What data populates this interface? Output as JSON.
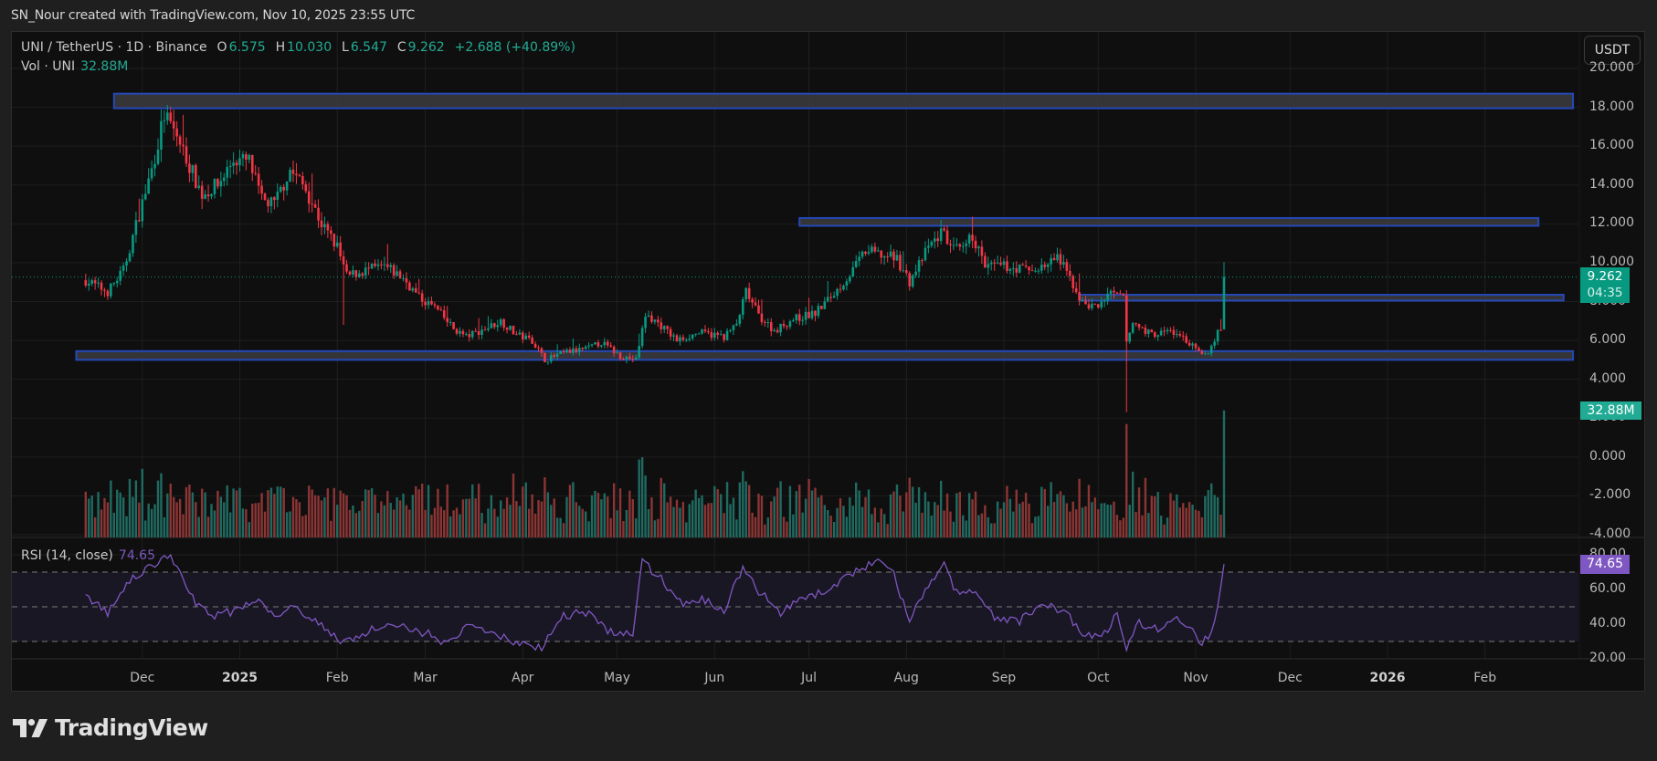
{
  "credit": "SN_Nour created with TradingView.com, Nov 10, 2025 23:55 UTC",
  "header": {
    "symbol": "UNI / TetherUS · 1D · Binance",
    "open_label": "O",
    "open": "6.575",
    "high_label": "H",
    "high": "10.030",
    "low_label": "L",
    "low": "6.547",
    "close_label": "C",
    "close": "9.262",
    "change": "+2.688 (+40.89%)",
    "vol_label": "Vol · UNI",
    "vol_value": "32.88M"
  },
  "currency_button": "USDT",
  "price_tag": {
    "price": "9.262",
    "countdown": "04:35"
  },
  "volume_tag": "32.88M",
  "rsi": {
    "label": "RSI (14, close)",
    "value": "74.65"
  },
  "logo_text": "TradingView",
  "colors": {
    "up": "#089981",
    "down": "#f23645",
    "vol_up": "#1f6b61",
    "vol_down": "#8c3535",
    "rsi": "#7e57c2",
    "zone_fill": "#3c3c3f",
    "zone_border": "#2448b8",
    "background": "#0f0f0f"
  },
  "chart_data": {
    "type": "candlestick",
    "title": "UNI / TetherUS · 1D · Binance",
    "xlabel": "",
    "ylabel": "USDT",
    "y_ticks": [
      "20.000",
      "18.000",
      "16.000",
      "14.000",
      "12.000",
      "10.000",
      "8.000",
      "6.000",
      "4.000",
      "2.000",
      "0.000",
      "-2.000",
      "-4.000"
    ],
    "rsi_ticks": [
      "80.00",
      "60.00",
      "40.00",
      "20.00"
    ],
    "x_ticks": [
      "Dec",
      "2025",
      "Feb",
      "Mar",
      "Apr",
      "May",
      "Jun",
      "Jul",
      "Aug",
      "Sep",
      "Oct",
      "Nov",
      "Dec",
      "2026",
      "Feb"
    ],
    "ylim": [
      -4,
      20
    ],
    "last": {
      "open": 6.575,
      "high": 10.03,
      "low": 6.547,
      "close": 9.262,
      "change": 2.688,
      "change_pct": 40.89,
      "volume": "32.88M",
      "rsi": 74.65
    },
    "zones": [
      {
        "from": 17.95,
        "to": 18.7,
        "start": "2024-11-22",
        "end": "2026-03-01"
      },
      {
        "from": 11.9,
        "to": 12.3,
        "start": "2025-06-28",
        "end": "2026-02-18"
      },
      {
        "from": 8.05,
        "to": 8.35,
        "start": "2025-09-25",
        "end": "2026-02-26"
      },
      {
        "from": 5.0,
        "to": 5.45,
        "start": "2024-11-10",
        "end": "2026-03-01"
      }
    ],
    "close_path": [
      [
        "2024-11-13",
        9.1
      ],
      [
        "2024-11-20",
        8.5
      ],
      [
        "2024-11-25",
        9.6
      ],
      [
        "2024-11-30",
        12.5
      ],
      [
        "2024-12-04",
        14.8
      ],
      [
        "2024-12-08",
        17.6
      ],
      [
        "2024-12-12",
        16.5
      ],
      [
        "2024-12-16",
        15.0
      ],
      [
        "2024-12-20",
        13.5
      ],
      [
        "2024-12-25",
        14.0
      ],
      [
        "2024-12-30",
        15.3
      ],
      [
        "2025-01-04",
        15.2
      ],
      [
        "2025-01-08",
        13.2
      ],
      [
        "2025-01-12",
        13.0
      ],
      [
        "2025-01-17",
        14.8
      ],
      [
        "2025-01-22",
        13.8
      ],
      [
        "2025-01-27",
        12.0
      ],
      [
        "2025-02-01",
        10.8
      ],
      [
        "2025-02-04",
        9.3
      ],
      [
        "2025-02-10",
        9.6
      ],
      [
        "2025-02-16",
        9.8
      ],
      [
        "2025-02-22",
        9.2
      ],
      [
        "2025-02-27",
        8.2
      ],
      [
        "2025-03-04",
        7.7
      ],
      [
        "2025-03-10",
        6.6
      ],
      [
        "2025-03-14",
        6.2
      ],
      [
        "2025-03-20",
        6.6
      ],
      [
        "2025-03-25",
        7.0
      ],
      [
        "2025-03-30",
        6.3
      ],
      [
        "2025-04-04",
        6.0
      ],
      [
        "2025-04-08",
        5.0
      ],
      [
        "2025-04-15",
        5.4
      ],
      [
        "2025-04-22",
        5.6
      ],
      [
        "2025-04-26",
        5.9
      ],
      [
        "2025-05-02",
        5.2
      ],
      [
        "2025-05-07",
        5.0
      ],
      [
        "2025-05-10",
        7.3
      ],
      [
        "2025-05-14",
        6.9
      ],
      [
        "2025-05-20",
        6.0
      ],
      [
        "2025-05-27",
        6.4
      ],
      [
        "2025-06-04",
        6.2
      ],
      [
        "2025-06-08",
        6.8
      ],
      [
        "2025-06-11",
        8.5
      ],
      [
        "2025-06-15",
        7.3
      ],
      [
        "2025-06-20",
        6.5
      ],
      [
        "2025-06-26",
        7.1
      ],
      [
        "2025-07-03",
        7.4
      ],
      [
        "2025-07-10",
        8.6
      ],
      [
        "2025-07-15",
        9.6
      ],
      [
        "2025-07-19",
        10.6
      ],
      [
        "2025-07-24",
        10.4
      ],
      [
        "2025-07-29",
        10.2
      ],
      [
        "2025-08-02",
        9.0
      ],
      [
        "2025-08-08",
        10.8
      ],
      [
        "2025-08-13",
        11.7
      ],
      [
        "2025-08-15",
        10.7
      ],
      [
        "2025-08-19",
        10.6
      ],
      [
        "2025-08-22",
        11.4
      ],
      [
        "2025-08-26",
        9.8
      ],
      [
        "2025-09-02",
        9.8
      ],
      [
        "2025-09-10",
        9.6
      ],
      [
        "2025-09-15",
        9.9
      ],
      [
        "2025-09-18",
        10.3
      ],
      [
        "2025-09-22",
        9.2
      ],
      [
        "2025-09-26",
        7.9
      ],
      [
        "2025-10-01",
        7.7
      ],
      [
        "2025-10-04",
        8.4
      ],
      [
        "2025-10-09",
        8.2
      ],
      [
        "2025-10-10",
        5.9
      ],
      [
        "2025-10-12",
        6.9
      ],
      [
        "2025-10-18",
        6.3
      ],
      [
        "2025-10-24",
        6.5
      ],
      [
        "2025-10-29",
        6.0
      ],
      [
        "2025-11-03",
        5.2
      ],
      [
        "2025-11-05",
        5.4
      ],
      [
        "2025-11-08",
        6.4
      ],
      [
        "2025-11-09",
        6.575
      ],
      [
        "2025-11-10",
        9.262
      ]
    ],
    "rsi_path": [
      [
        "2024-11-13",
        57
      ],
      [
        "2024-11-20",
        46
      ],
      [
        "2024-11-27",
        65
      ],
      [
        "2024-12-03",
        72
      ],
      [
        "2024-12-08",
        80
      ],
      [
        "2024-12-12",
        75
      ],
      [
        "2024-12-16",
        57
      ],
      [
        "2024-12-22",
        45
      ],
      [
        "2024-12-30",
        47
      ],
      [
        "2025-01-06",
        55
      ],
      [
        "2025-01-12",
        45
      ],
      [
        "2025-01-18",
        51
      ],
      [
        "2025-01-25",
        42
      ],
      [
        "2025-02-02",
        30
      ],
      [
        "2025-02-08",
        33
      ],
      [
        "2025-02-15",
        40
      ],
      [
        "2025-02-22",
        38
      ],
      [
        "2025-03-01",
        35
      ],
      [
        "2025-03-08",
        29
      ],
      [
        "2025-03-15",
        39
      ],
      [
        "2025-03-22",
        35
      ],
      [
        "2025-03-30",
        29
      ],
      [
        "2025-04-07",
        27
      ],
      [
        "2025-04-14",
        45
      ],
      [
        "2025-04-22",
        47
      ],
      [
        "2025-04-28",
        36
      ],
      [
        "2025-05-06",
        34
      ],
      [
        "2025-05-09",
        76
      ],
      [
        "2025-05-14",
        68
      ],
      [
        "2025-05-22",
        51
      ],
      [
        "2025-05-28",
        54
      ],
      [
        "2025-06-04",
        48
      ],
      [
        "2025-06-10",
        73
      ],
      [
        "2025-06-15",
        59
      ],
      [
        "2025-06-22",
        47
      ],
      [
        "2025-06-29",
        54
      ],
      [
        "2025-07-05",
        58
      ],
      [
        "2025-07-12",
        66
      ],
      [
        "2025-07-18",
        72
      ],
      [
        "2025-07-23",
        77
      ],
      [
        "2025-07-28",
        68
      ],
      [
        "2025-08-02",
        42
      ],
      [
        "2025-08-08",
        62
      ],
      [
        "2025-08-13",
        74
      ],
      [
        "2025-08-17",
        58
      ],
      [
        "2025-08-23",
        58
      ],
      [
        "2025-08-29",
        44
      ],
      [
        "2025-09-06",
        42
      ],
      [
        "2025-09-14",
        51
      ],
      [
        "2025-09-20",
        48
      ],
      [
        "2025-09-27",
        33
      ],
      [
        "2025-10-03",
        34
      ],
      [
        "2025-10-07",
        47
      ],
      [
        "2025-10-10",
        27
      ],
      [
        "2025-10-14",
        41
      ],
      [
        "2025-10-20",
        37
      ],
      [
        "2025-10-27",
        43
      ],
      [
        "2025-11-03",
        29
      ],
      [
        "2025-11-06",
        35
      ],
      [
        "2025-11-08",
        49
      ],
      [
        "2025-11-10",
        74.65
      ]
    ]
  }
}
